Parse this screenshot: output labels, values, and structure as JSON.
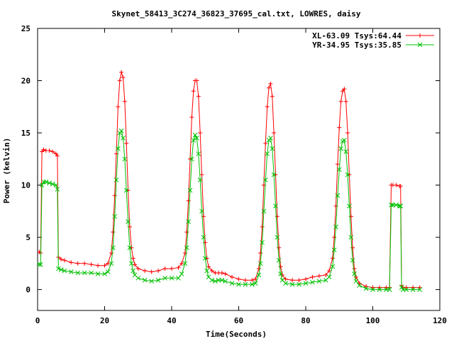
{
  "chart_data": {
    "type": "line",
    "title": "Skynet_58413_3C274_36823_37695_cal.txt, LOWRES, daisy",
    "xlabel": "Time(Seconds)",
    "ylabel": "Power (kelvin)",
    "xlim": [
      0,
      120
    ],
    "ylim": [
      -2,
      25
    ],
    "xticks": [
      0,
      20,
      40,
      60,
      80,
      100,
      120
    ],
    "yticks": [
      0,
      5,
      10,
      15,
      20,
      25
    ],
    "grid": false,
    "legend_position": "top-right",
    "series": [
      {
        "name": "XL-63.09 Tsys:64.44",
        "color": "#ff0000",
        "marker": "plus",
        "points": [
          [
            0.5,
            3.6
          ],
          [
            0.9,
            3.5
          ],
          [
            1.3,
            13.2
          ],
          [
            1.8,
            13.4
          ],
          [
            2.5,
            13.3
          ],
          [
            3.5,
            13.3
          ],
          [
            4.5,
            13.2
          ],
          [
            5.5,
            13.0
          ],
          [
            5.9,
            12.8
          ],
          [
            6.2,
            3.1
          ],
          [
            7,
            2.9
          ],
          [
            8,
            2.8
          ],
          [
            10,
            2.6
          ],
          [
            12,
            2.5
          ],
          [
            14,
            2.5
          ],
          [
            16,
            2.4
          ],
          [
            18,
            2.3
          ],
          [
            20,
            2.3
          ],
          [
            21,
            2.5
          ],
          [
            22,
            3.5
          ],
          [
            22.5,
            5.5
          ],
          [
            23,
            9
          ],
          [
            23.5,
            13
          ],
          [
            24,
            17.5
          ],
          [
            24.5,
            20
          ],
          [
            25,
            20.8
          ],
          [
            25.5,
            20.3
          ],
          [
            26,
            18
          ],
          [
            26.5,
            14
          ],
          [
            27,
            9.5
          ],
          [
            27.5,
            6
          ],
          [
            28,
            4
          ],
          [
            28.5,
            3
          ],
          [
            29,
            2.4
          ],
          [
            30,
            2.0
          ],
          [
            32,
            1.8
          ],
          [
            34,
            1.7
          ],
          [
            36,
            1.8
          ],
          [
            38,
            2.0
          ],
          [
            40,
            2.0
          ],
          [
            42,
            2.1
          ],
          [
            43,
            2.5
          ],
          [
            44,
            3.5
          ],
          [
            44.5,
            5.5
          ],
          [
            45,
            8.5
          ],
          [
            45.5,
            12.5
          ],
          [
            46,
            16.5
          ],
          [
            46.5,
            19
          ],
          [
            47,
            20
          ],
          [
            47.5,
            20
          ],
          [
            48,
            18.5
          ],
          [
            48.5,
            15
          ],
          [
            49,
            11
          ],
          [
            49.5,
            7
          ],
          [
            50,
            4.5
          ],
          [
            50.5,
            3
          ],
          [
            51,
            2.2
          ],
          [
            52,
            1.8
          ],
          [
            53,
            1.6
          ],
          [
            54,
            1.6
          ],
          [
            55,
            1.6
          ],
          [
            56,
            1.5
          ],
          [
            58,
            1.2
          ],
          [
            60,
            1.0
          ],
          [
            62,
            0.9
          ],
          [
            64,
            0.9
          ],
          [
            65,
            1.0
          ],
          [
            66,
            2
          ],
          [
            66.5,
            3.5
          ],
          [
            67,
            6
          ],
          [
            67.5,
            10
          ],
          [
            68,
            14
          ],
          [
            68.5,
            17.5
          ],
          [
            69,
            19.3
          ],
          [
            69.5,
            19.7
          ],
          [
            70,
            18.5
          ],
          [
            70.5,
            15
          ],
          [
            71,
            11
          ],
          [
            71.5,
            7
          ],
          [
            72,
            4
          ],
          [
            72.5,
            2.2
          ],
          [
            73,
            1.4
          ],
          [
            74,
            1.0
          ],
          [
            76,
            0.9
          ],
          [
            78,
            0.9
          ],
          [
            80,
            1.0
          ],
          [
            82,
            1.2
          ],
          [
            84,
            1.3
          ],
          [
            86,
            1.4
          ],
          [
            87,
            1.8
          ],
          [
            88,
            3
          ],
          [
            88.5,
            5
          ],
          [
            89,
            8
          ],
          [
            89.5,
            12
          ],
          [
            90,
            15.5
          ],
          [
            90.5,
            18
          ],
          [
            91,
            19
          ],
          [
            91.5,
            19.2
          ],
          [
            92,
            18
          ],
          [
            92.5,
            15
          ],
          [
            93,
            11
          ],
          [
            93.5,
            7
          ],
          [
            94,
            4
          ],
          [
            94.5,
            2
          ],
          [
            95,
            1.2
          ],
          [
            96,
            0.6
          ],
          [
            98,
            0.3
          ],
          [
            100,
            0.2
          ],
          [
            102,
            0.2
          ],
          [
            104,
            0.2
          ],
          [
            105,
            0.2
          ],
          [
            105.5,
            10.0
          ],
          [
            106,
            10.0
          ],
          [
            107,
            10.0
          ],
          [
            108,
            9.9
          ],
          [
            108.3,
            9.9
          ],
          [
            108.6,
            0.4
          ],
          [
            109,
            0.2
          ],
          [
            110,
            0.2
          ],
          [
            112,
            0.2
          ],
          [
            114,
            0.2
          ]
        ]
      },
      {
        "name": "YR-34.95 Tsys:35.85",
        "color": "#00c000",
        "marker": "x",
        "points": [
          [
            0.5,
            2.4
          ],
          [
            0.9,
            2.4
          ],
          [
            1.3,
            10.0
          ],
          [
            1.8,
            10.3
          ],
          [
            2.5,
            10.3
          ],
          [
            3.5,
            10.2
          ],
          [
            4.5,
            10.1
          ],
          [
            5.5,
            10.0
          ],
          [
            5.9,
            9.6
          ],
          [
            6.2,
            2.0
          ],
          [
            7,
            1.9
          ],
          [
            8,
            1.8
          ],
          [
            10,
            1.7
          ],
          [
            12,
            1.6
          ],
          [
            14,
            1.6
          ],
          [
            16,
            1.6
          ],
          [
            18,
            1.5
          ],
          [
            20,
            1.5
          ],
          [
            21,
            1.7
          ],
          [
            22,
            2.5
          ],
          [
            22.5,
            4
          ],
          [
            23,
            7
          ],
          [
            23.5,
            10.5
          ],
          [
            24,
            13.5
          ],
          [
            24.5,
            15
          ],
          [
            25,
            15.2
          ],
          [
            25.5,
            14.5
          ],
          [
            26,
            12.5
          ],
          [
            26.5,
            9.5
          ],
          [
            27,
            6.5
          ],
          [
            27.5,
            4
          ],
          [
            28,
            2.5
          ],
          [
            28.5,
            1.8
          ],
          [
            29,
            1.4
          ],
          [
            30,
            1.1
          ],
          [
            32,
            0.9
          ],
          [
            34,
            0.8
          ],
          [
            36,
            0.9
          ],
          [
            38,
            1.1
          ],
          [
            40,
            1.1
          ],
          [
            42,
            1.1
          ],
          [
            43,
            1.5
          ],
          [
            44,
            2.5
          ],
          [
            44.5,
            4
          ],
          [
            45,
            6.5
          ],
          [
            45.5,
            9.5
          ],
          [
            46,
            12.5
          ],
          [
            46.5,
            14.3
          ],
          [
            47,
            14.8
          ],
          [
            47.5,
            14.5
          ],
          [
            48,
            13
          ],
          [
            48.5,
            10.5
          ],
          [
            49,
            7.5
          ],
          [
            49.5,
            5
          ],
          [
            50,
            3
          ],
          [
            50.5,
            1.8
          ],
          [
            51,
            1.2
          ],
          [
            52,
            0.9
          ],
          [
            53,
            0.8
          ],
          [
            54,
            0.9
          ],
          [
            55,
            0.9
          ],
          [
            56,
            0.8
          ],
          [
            58,
            0.6
          ],
          [
            60,
            0.5
          ],
          [
            62,
            0.5
          ],
          [
            64,
            0.5
          ],
          [
            65,
            0.6
          ],
          [
            66,
            1.4
          ],
          [
            66.5,
            2.5
          ],
          [
            67,
            4.5
          ],
          [
            67.5,
            7.5
          ],
          [
            68,
            10.5
          ],
          [
            68.5,
            13
          ],
          [
            69,
            14.3
          ],
          [
            69.5,
            14.5
          ],
          [
            70,
            13.5
          ],
          [
            70.5,
            11
          ],
          [
            71,
            8
          ],
          [
            71.5,
            5
          ],
          [
            72,
            2.8
          ],
          [
            72.5,
            1.5
          ],
          [
            73,
            0.9
          ],
          [
            74,
            0.6
          ],
          [
            76,
            0.5
          ],
          [
            78,
            0.5
          ],
          [
            80,
            0.6
          ],
          [
            82,
            0.7
          ],
          [
            84,
            0.8
          ],
          [
            86,
            0.9
          ],
          [
            87,
            1.2
          ],
          [
            88,
            2.2
          ],
          [
            88.5,
            3.8
          ],
          [
            89,
            6
          ],
          [
            89.5,
            9
          ],
          [
            90,
            11.5
          ],
          [
            90.5,
            13.5
          ],
          [
            91,
            14.2
          ],
          [
            91.5,
            14.3
          ],
          [
            92,
            13.2
          ],
          [
            92.5,
            11
          ],
          [
            93,
            8
          ],
          [
            93.5,
            5
          ],
          [
            94,
            2.8
          ],
          [
            94.5,
            1.5
          ],
          [
            95,
            0.8
          ],
          [
            96,
            0.4
          ],
          [
            98,
            0.1
          ],
          [
            100,
            0.0
          ],
          [
            102,
            0.0
          ],
          [
            104,
            0.0
          ],
          [
            105,
            0.0
          ],
          [
            105.5,
            8.1
          ],
          [
            106,
            8.1
          ],
          [
            107,
            8.1
          ],
          [
            108,
            8.0
          ],
          [
            108.3,
            8.0
          ],
          [
            108.6,
            0.2
          ],
          [
            109,
            0.0
          ],
          [
            110,
            0.0
          ],
          [
            112,
            0.0
          ],
          [
            114,
            0.0
          ]
        ]
      }
    ]
  }
}
